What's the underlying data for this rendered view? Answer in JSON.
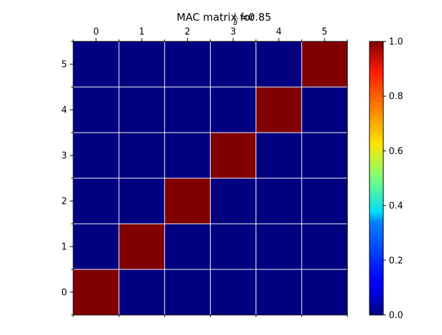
{
  "chart_data": {
    "type": "heatmap",
    "title": {
      "prefix": "MAC matrix for",
      "fraction_numerator": "L",
      "fraction_denominator": "B",
      "suffix": "=0.85"
    },
    "x_ticks": [
      "0",
      "1",
      "2",
      "3",
      "4",
      "5"
    ],
    "y_ticks": [
      "0",
      "1",
      "2",
      "3",
      "4",
      "5"
    ],
    "x_axis_position": "top",
    "y_axis_origin": "bottom",
    "matrix": [
      [
        1,
        0,
        0,
        0,
        0,
        0
      ],
      [
        0,
        1,
        0,
        0,
        0,
        0
      ],
      [
        0,
        0,
        1,
        0,
        0,
        0
      ],
      [
        0,
        0,
        0,
        1,
        0,
        0
      ],
      [
        0,
        0,
        0,
        0,
        1,
        0
      ],
      [
        0,
        0,
        0,
        0,
        0,
        1
      ]
    ],
    "colormap": "jet",
    "colorbar": {
      "range": [
        0.0,
        1.0
      ],
      "ticks": [
        "0.0",
        "0.2",
        "0.4",
        "0.6",
        "0.8",
        "1.0"
      ],
      "placement": "right"
    },
    "grid": true,
    "grid_color": "#ffffff"
  }
}
